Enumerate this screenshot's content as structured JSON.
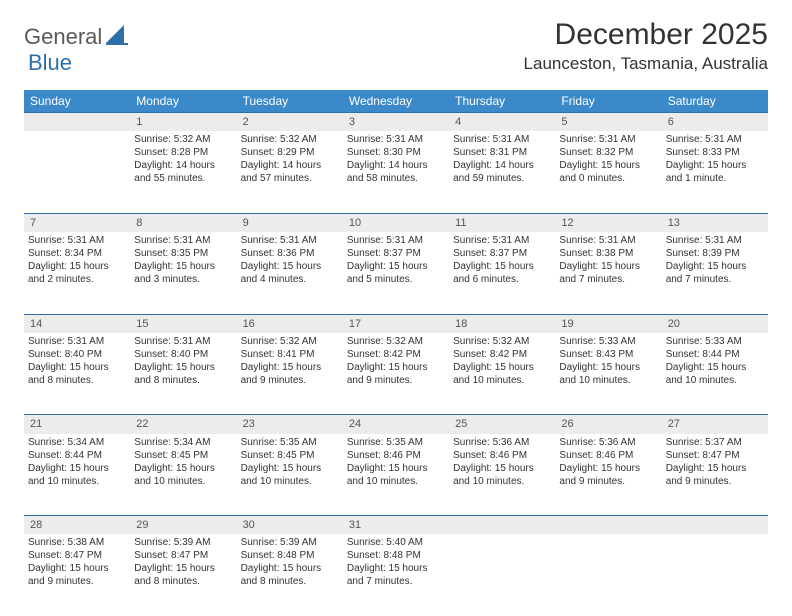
{
  "brand": {
    "part1": "General",
    "part2": "Blue"
  },
  "title": "December 2025",
  "location": "Launceston, Tasmania, Australia",
  "colors": {
    "header_bg": "#3b89c9",
    "header_text": "#ffffff",
    "daynum_bg": "#ececec",
    "rule": "#2f6fa8",
    "logo_accent": "#2f6fa8",
    "logo_gray": "#5a5a5a",
    "text": "#333333"
  },
  "day_names": [
    "Sunday",
    "Monday",
    "Tuesday",
    "Wednesday",
    "Thursday",
    "Friday",
    "Saturday"
  ],
  "weeks": [
    {
      "nums": [
        "",
        "1",
        "2",
        "3",
        "4",
        "5",
        "6"
      ],
      "cells": [
        null,
        {
          "sr": "Sunrise: 5:32 AM",
          "ss": "Sunset: 8:28 PM",
          "dl": "Daylight: 14 hours and 55 minutes."
        },
        {
          "sr": "Sunrise: 5:32 AM",
          "ss": "Sunset: 8:29 PM",
          "dl": "Daylight: 14 hours and 57 minutes."
        },
        {
          "sr": "Sunrise: 5:31 AM",
          "ss": "Sunset: 8:30 PM",
          "dl": "Daylight: 14 hours and 58 minutes."
        },
        {
          "sr": "Sunrise: 5:31 AM",
          "ss": "Sunset: 8:31 PM",
          "dl": "Daylight: 14 hours and 59 minutes."
        },
        {
          "sr": "Sunrise: 5:31 AM",
          "ss": "Sunset: 8:32 PM",
          "dl": "Daylight: 15 hours and 0 minutes."
        },
        {
          "sr": "Sunrise: 5:31 AM",
          "ss": "Sunset: 8:33 PM",
          "dl": "Daylight: 15 hours and 1 minute."
        }
      ]
    },
    {
      "nums": [
        "7",
        "8",
        "9",
        "10",
        "11",
        "12",
        "13"
      ],
      "cells": [
        {
          "sr": "Sunrise: 5:31 AM",
          "ss": "Sunset: 8:34 PM",
          "dl": "Daylight: 15 hours and 2 minutes."
        },
        {
          "sr": "Sunrise: 5:31 AM",
          "ss": "Sunset: 8:35 PM",
          "dl": "Daylight: 15 hours and 3 minutes."
        },
        {
          "sr": "Sunrise: 5:31 AM",
          "ss": "Sunset: 8:36 PM",
          "dl": "Daylight: 15 hours and 4 minutes."
        },
        {
          "sr": "Sunrise: 5:31 AM",
          "ss": "Sunset: 8:37 PM",
          "dl": "Daylight: 15 hours and 5 minutes."
        },
        {
          "sr": "Sunrise: 5:31 AM",
          "ss": "Sunset: 8:37 PM",
          "dl": "Daylight: 15 hours and 6 minutes."
        },
        {
          "sr": "Sunrise: 5:31 AM",
          "ss": "Sunset: 8:38 PM",
          "dl": "Daylight: 15 hours and 7 minutes."
        },
        {
          "sr": "Sunrise: 5:31 AM",
          "ss": "Sunset: 8:39 PM",
          "dl": "Daylight: 15 hours and 7 minutes."
        }
      ]
    },
    {
      "nums": [
        "14",
        "15",
        "16",
        "17",
        "18",
        "19",
        "20"
      ],
      "cells": [
        {
          "sr": "Sunrise: 5:31 AM",
          "ss": "Sunset: 8:40 PM",
          "dl": "Daylight: 15 hours and 8 minutes."
        },
        {
          "sr": "Sunrise: 5:31 AM",
          "ss": "Sunset: 8:40 PM",
          "dl": "Daylight: 15 hours and 8 minutes."
        },
        {
          "sr": "Sunrise: 5:32 AM",
          "ss": "Sunset: 8:41 PM",
          "dl": "Daylight: 15 hours and 9 minutes."
        },
        {
          "sr": "Sunrise: 5:32 AM",
          "ss": "Sunset: 8:42 PM",
          "dl": "Daylight: 15 hours and 9 minutes."
        },
        {
          "sr": "Sunrise: 5:32 AM",
          "ss": "Sunset: 8:42 PM",
          "dl": "Daylight: 15 hours and 10 minutes."
        },
        {
          "sr": "Sunrise: 5:33 AM",
          "ss": "Sunset: 8:43 PM",
          "dl": "Daylight: 15 hours and 10 minutes."
        },
        {
          "sr": "Sunrise: 5:33 AM",
          "ss": "Sunset: 8:44 PM",
          "dl": "Daylight: 15 hours and 10 minutes."
        }
      ]
    },
    {
      "nums": [
        "21",
        "22",
        "23",
        "24",
        "25",
        "26",
        "27"
      ],
      "cells": [
        {
          "sr": "Sunrise: 5:34 AM",
          "ss": "Sunset: 8:44 PM",
          "dl": "Daylight: 15 hours and 10 minutes."
        },
        {
          "sr": "Sunrise: 5:34 AM",
          "ss": "Sunset: 8:45 PM",
          "dl": "Daylight: 15 hours and 10 minutes."
        },
        {
          "sr": "Sunrise: 5:35 AM",
          "ss": "Sunset: 8:45 PM",
          "dl": "Daylight: 15 hours and 10 minutes."
        },
        {
          "sr": "Sunrise: 5:35 AM",
          "ss": "Sunset: 8:46 PM",
          "dl": "Daylight: 15 hours and 10 minutes."
        },
        {
          "sr": "Sunrise: 5:36 AM",
          "ss": "Sunset: 8:46 PM",
          "dl": "Daylight: 15 hours and 10 minutes."
        },
        {
          "sr": "Sunrise: 5:36 AM",
          "ss": "Sunset: 8:46 PM",
          "dl": "Daylight: 15 hours and 9 minutes."
        },
        {
          "sr": "Sunrise: 5:37 AM",
          "ss": "Sunset: 8:47 PM",
          "dl": "Daylight: 15 hours and 9 minutes."
        }
      ]
    },
    {
      "nums": [
        "28",
        "29",
        "30",
        "31",
        "",
        "",
        ""
      ],
      "cells": [
        {
          "sr": "Sunrise: 5:38 AM",
          "ss": "Sunset: 8:47 PM",
          "dl": "Daylight: 15 hours and 9 minutes."
        },
        {
          "sr": "Sunrise: 5:39 AM",
          "ss": "Sunset: 8:47 PM",
          "dl": "Daylight: 15 hours and 8 minutes."
        },
        {
          "sr": "Sunrise: 5:39 AM",
          "ss": "Sunset: 8:48 PM",
          "dl": "Daylight: 15 hours and 8 minutes."
        },
        {
          "sr": "Sunrise: 5:40 AM",
          "ss": "Sunset: 8:48 PM",
          "dl": "Daylight: 15 hours and 7 minutes."
        },
        null,
        null,
        null
      ]
    }
  ]
}
